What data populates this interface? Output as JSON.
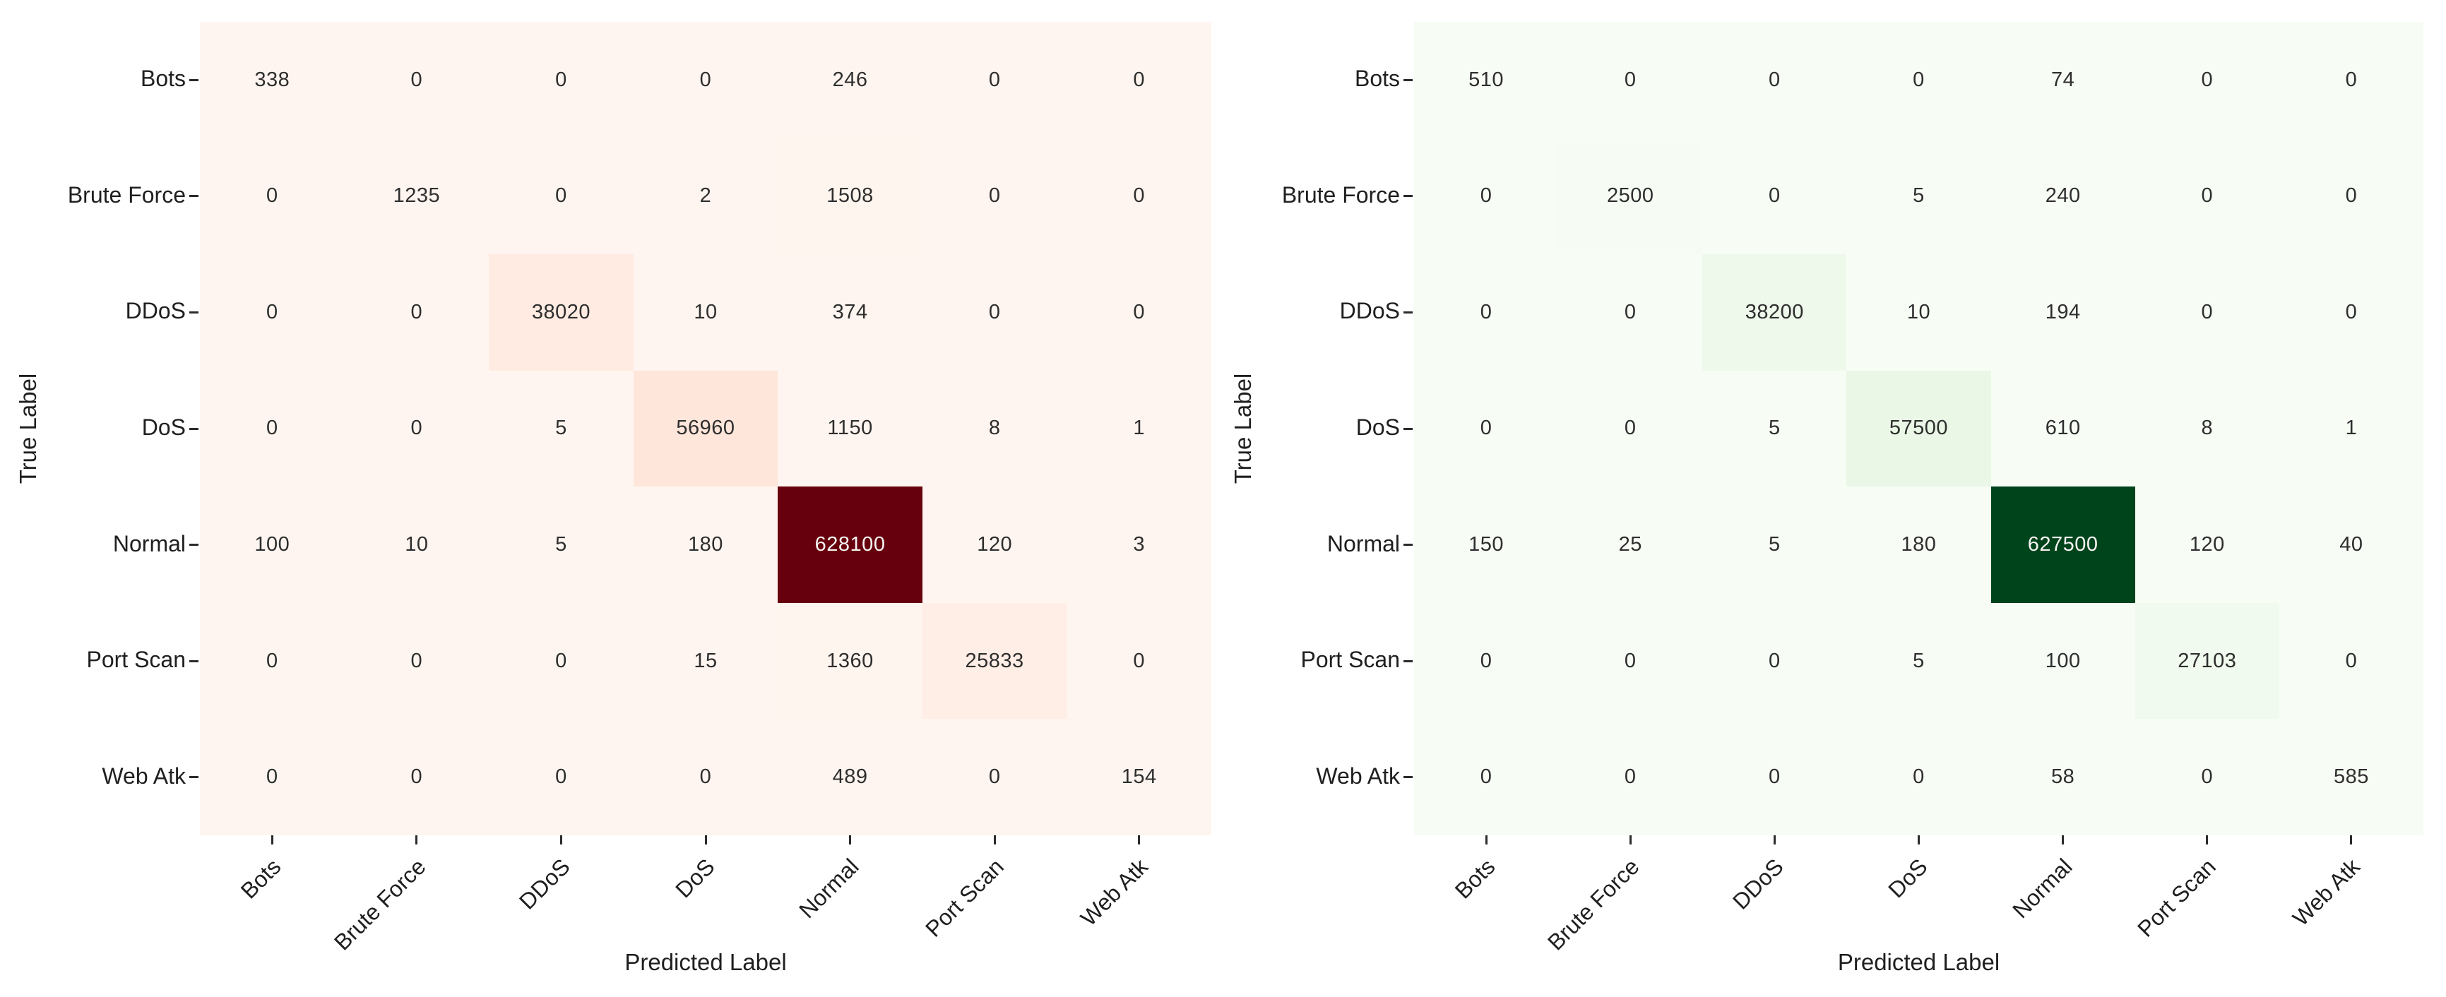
{
  "figure": {
    "xlabel": "Predicted Label",
    "ylabel": "True Label",
    "classes": [
      "Bots",
      "Brute Force",
      "DDoS",
      "DoS",
      "Normal",
      "Port Scan",
      "Web Atk"
    ]
  },
  "chart_data": [
    {
      "type": "heatmap",
      "name": "confusion-matrix-reds",
      "colormap": "Reds",
      "xlabel": "Predicted Label",
      "ylabel": "True Label",
      "x_tick_labels": [
        "Bots",
        "Brute Force",
        "DDoS",
        "DoS",
        "Normal",
        "Port Scan",
        "Web Atk"
      ],
      "y_tick_labels": [
        "Bots",
        "Brute Force",
        "DDoS",
        "DoS",
        "Normal",
        "Port Scan",
        "Web Atk"
      ],
      "vmin": 0,
      "vmax": 628100,
      "grid": false,
      "matrix": [
        [
          338,
          0,
          0,
          0,
          246,
          0,
          0
        ],
        [
          0,
          1235,
          0,
          2,
          1508,
          0,
          0
        ],
        [
          0,
          0,
          38020,
          10,
          374,
          0,
          0
        ],
        [
          0,
          0,
          5,
          56960,
          1150,
          8,
          1
        ],
        [
          100,
          10,
          5,
          180,
          628100,
          120,
          3
        ],
        [
          0,
          0,
          0,
          15,
          1360,
          25833,
          0
        ],
        [
          0,
          0,
          0,
          0,
          489,
          0,
          154
        ]
      ]
    },
    {
      "type": "heatmap",
      "name": "confusion-matrix-greens",
      "colormap": "Greens",
      "xlabel": "Predicted Label",
      "ylabel": "True Label",
      "x_tick_labels": [
        "Bots",
        "Brute Force",
        "DDoS",
        "DoS",
        "Normal",
        "Port Scan",
        "Web Atk"
      ],
      "y_tick_labels": [
        "Bots",
        "Brute Force",
        "DDoS",
        "DoS",
        "Normal",
        "Port Scan",
        "Web Atk"
      ],
      "vmin": 0,
      "vmax": 627500,
      "grid": false,
      "matrix": [
        [
          510,
          0,
          0,
          0,
          74,
          0,
          0
        ],
        [
          0,
          2500,
          0,
          5,
          240,
          0,
          0
        ],
        [
          0,
          0,
          38200,
          10,
          194,
          0,
          0
        ],
        [
          0,
          0,
          5,
          57500,
          610,
          8,
          1
        ],
        [
          150,
          25,
          5,
          180,
          627500,
          120,
          40
        ],
        [
          0,
          0,
          0,
          5,
          100,
          27103,
          0
        ],
        [
          0,
          0,
          0,
          0,
          58,
          0,
          585
        ]
      ]
    }
  ],
  "colormaps": {
    "Reds": [
      "#fff5f0",
      "#fee0d2",
      "#fcbba1",
      "#fc9272",
      "#fb6a4a",
      "#ef3b2c",
      "#cb181d",
      "#a50f15",
      "#67000d"
    ],
    "Greens": [
      "#f7fcf5",
      "#e5f5e0",
      "#c7e9c0",
      "#a1d99b",
      "#74c476",
      "#41ab5d",
      "#238b45",
      "#006d2c",
      "#00441b"
    ]
  },
  "colors": {
    "cell_text_dark": "#2e2e2e",
    "cell_text_light": "#f5f3f2",
    "tick_text": "#1f1f1f",
    "background": "#ffffff"
  }
}
